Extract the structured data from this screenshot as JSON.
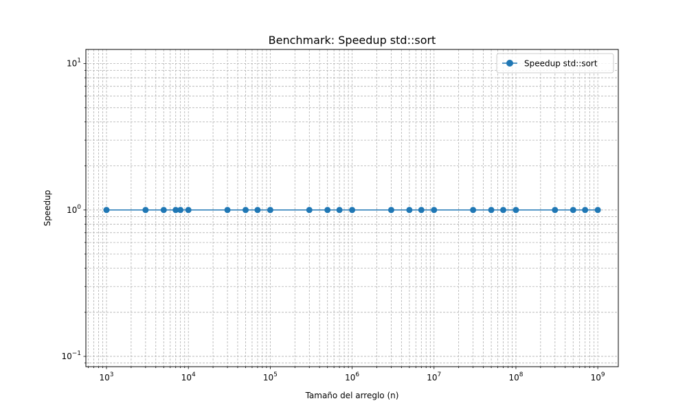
{
  "chart_data": {
    "type": "line",
    "title": "Benchmark: Speedup std::sort",
    "xlabel": "Tamaño del arreglo (n)",
    "ylabel": "Speedup",
    "xscale": "log",
    "yscale": "log",
    "xlim": [
      560,
      1780000000
    ],
    "ylim": [
      0.085,
      12.5
    ],
    "grid": true,
    "legend_loc": "upper right",
    "x_ticks": [
      {
        "value": 1000,
        "base": "10",
        "exp": "3"
      },
      {
        "value": 10000,
        "base": "10",
        "exp": "4"
      },
      {
        "value": 100000,
        "base": "10",
        "exp": "5"
      },
      {
        "value": 1000000,
        "base": "10",
        "exp": "6"
      },
      {
        "value": 10000000,
        "base": "10",
        "exp": "7"
      },
      {
        "value": 100000000,
        "base": "10",
        "exp": "8"
      },
      {
        "value": 1000000000,
        "base": "10",
        "exp": "9"
      }
    ],
    "y_ticks": [
      {
        "value": 0.1,
        "base": "10",
        "exp": "−1"
      },
      {
        "value": 1,
        "base": "10",
        "exp": "0"
      },
      {
        "value": 10,
        "base": "10",
        "exp": "1"
      }
    ],
    "series": [
      {
        "name": "Speedup std::sort",
        "color": "#1f77b4",
        "marker": "circle",
        "x": [
          1000,
          3000,
          5000,
          7000,
          8000,
          10000,
          30000,
          50000,
          70000,
          100000,
          300000,
          500000,
          700000,
          1000000,
          3000000,
          5000000,
          7000000,
          10000000,
          30000000,
          50000000,
          70000000,
          100000000,
          300000000,
          500000000,
          700000000,
          1000000000
        ],
        "y": [
          1,
          1,
          1,
          1,
          1,
          1,
          1,
          1,
          1,
          1,
          1,
          1,
          1,
          1,
          1,
          1,
          1,
          1,
          1,
          1,
          1,
          1,
          1,
          1,
          1,
          1
        ]
      }
    ]
  }
}
